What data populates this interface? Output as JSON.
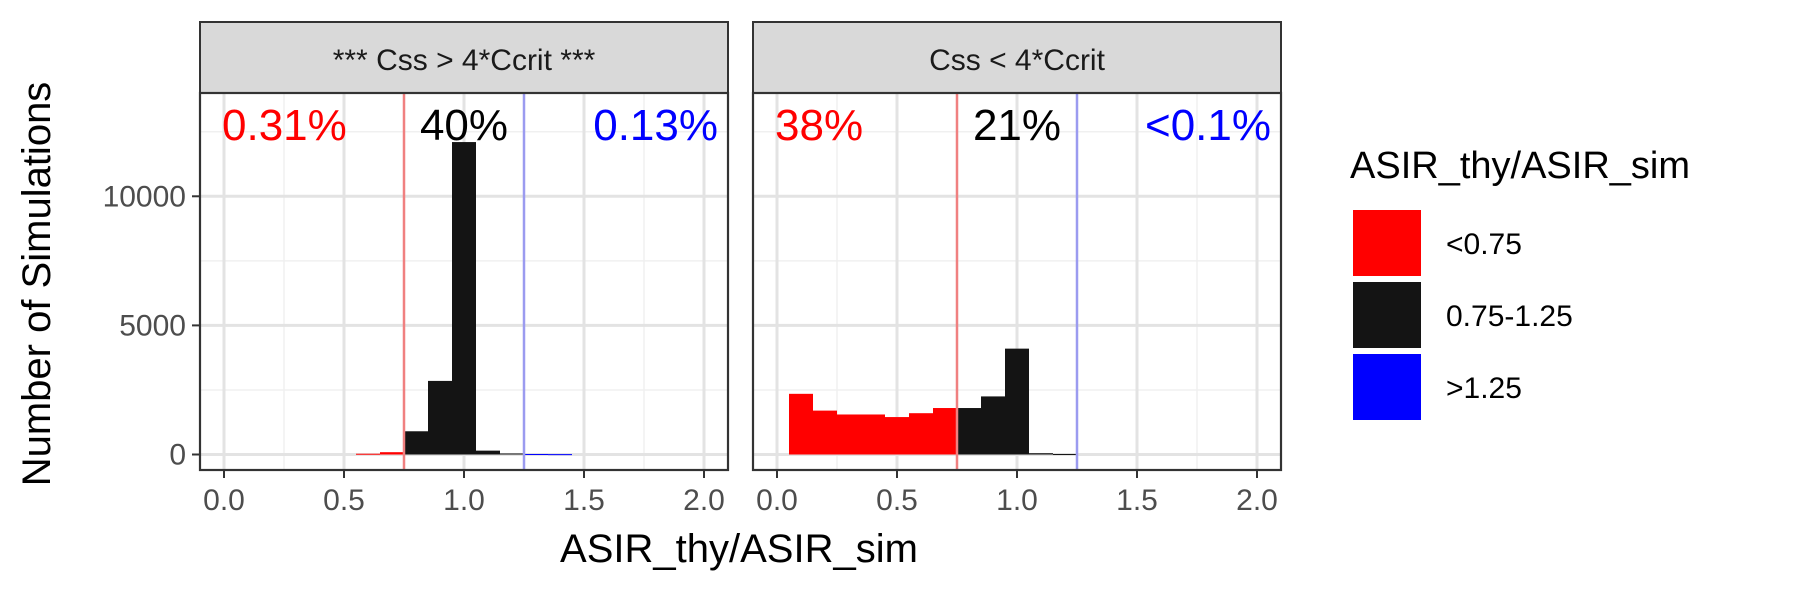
{
  "chart_data": {
    "type": "bar",
    "xlabel": "ASIR_thy/ASIR_sim",
    "ylabel": "Number of Simulations",
    "xlim": [
      -0.1,
      2.1
    ],
    "ylim": [
      -600,
      14000
    ],
    "xticks": [
      "0.0",
      "0.5",
      "1.0",
      "1.5",
      "2.0"
    ],
    "xtick_values": [
      0,
      0.5,
      1.0,
      1.5,
      2.0
    ],
    "yticks": [
      "0",
      "5000",
      "10000"
    ],
    "ytick_values": [
      0,
      5000,
      10000
    ],
    "grid": true,
    "vlines": [
      {
        "x": 0.75,
        "color": "#f08080"
      },
      {
        "x": 1.25,
        "color": "#9b9bf0"
      }
    ],
    "legend": {
      "title": "ASIR_thy/ASIR_sim",
      "position": "right",
      "items": [
        {
          "label": "<0.75",
          "color": "#ff0000"
        },
        {
          "label": "0.75-1.25",
          "color": "#141414"
        },
        {
          "label": ">1.25",
          "color": "#0000ff"
        }
      ]
    },
    "bin_width": 0.1,
    "panels": [
      {
        "strip": "*** Css > 4*Ccrit ***",
        "annotations": [
          {
            "text": "0.31%",
            "color": "#ff0000",
            "align": "left"
          },
          {
            "text": "40%",
            "color": "#000000",
            "align": "center"
          },
          {
            "text": "0.13%",
            "color": "#0000ff",
            "align": "right"
          }
        ],
        "bars": [
          {
            "x": 0.6,
            "value": 30,
            "group": "<0.75"
          },
          {
            "x": 0.7,
            "value": 90,
            "group": "<0.75"
          },
          {
            "x": 0.8,
            "value": 900,
            "group": "0.75-1.25"
          },
          {
            "x": 0.9,
            "value": 2850,
            "group": "0.75-1.25"
          },
          {
            "x": 1.0,
            "value": 12100,
            "group": "0.75-1.25"
          },
          {
            "x": 1.1,
            "value": 150,
            "group": "0.75-1.25"
          },
          {
            "x": 1.2,
            "value": 40,
            "group": "0.75-1.25"
          },
          {
            "x": 1.3,
            "value": 20,
            "group": ">1.25"
          },
          {
            "x": 1.4,
            "value": 15,
            "group": ">1.25"
          }
        ]
      },
      {
        "strip": "Css < 4*Ccrit",
        "annotations": [
          {
            "text": "38%",
            "color": "#ff0000",
            "align": "left"
          },
          {
            "text": "21%",
            "color": "#000000",
            "align": "center"
          },
          {
            "text": "<0.1%",
            "color": "#0000ff",
            "align": "right"
          }
        ],
        "bars": [
          {
            "x": 0.1,
            "value": 2350,
            "group": "<0.75"
          },
          {
            "x": 0.2,
            "value": 1700,
            "group": "<0.75"
          },
          {
            "x": 0.3,
            "value": 1550,
            "group": "<0.75"
          },
          {
            "x": 0.4,
            "value": 1550,
            "group": "<0.75"
          },
          {
            "x": 0.5,
            "value": 1450,
            "group": "<0.75"
          },
          {
            "x": 0.6,
            "value": 1600,
            "group": "<0.75"
          },
          {
            "x": 0.7,
            "value": 1800,
            "group": "<0.75"
          },
          {
            "x": 0.8,
            "value": 1800,
            "group": "0.75-1.25"
          },
          {
            "x": 0.9,
            "value": 2250,
            "group": "0.75-1.25"
          },
          {
            "x": 1.0,
            "value": 4100,
            "group": "0.75-1.25"
          },
          {
            "x": 1.1,
            "value": 50,
            "group": "0.75-1.25"
          },
          {
            "x": 1.2,
            "value": 20,
            "group": "0.75-1.25"
          }
        ]
      }
    ]
  }
}
